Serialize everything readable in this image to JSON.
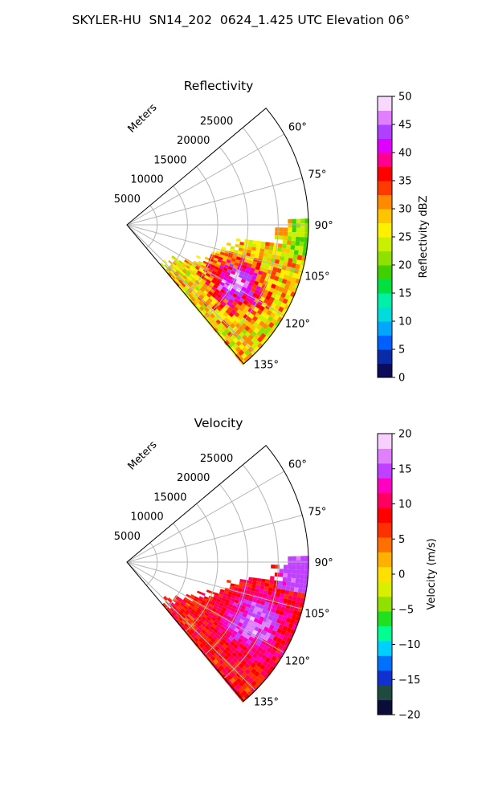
{
  "figure": {
    "title": "SKYLER-HU  SN14_202  0624_1.425 UTC Elevation 06°"
  },
  "colors": {
    "reflectivity_stops": [
      "#0c0c5a",
      "#0a2ba8",
      "#0060ff",
      "#00a6ff",
      "#00dcdc",
      "#00f0a8",
      "#00e040",
      "#40d000",
      "#90e000",
      "#c8f000",
      "#fff000",
      "#ffc400",
      "#ff8a00",
      "#ff3a00",
      "#ff0000",
      "#ff0090",
      "#e000ff",
      "#b040ff",
      "#e080ff",
      "#f8d8ff"
    ],
    "velocity_stops": [
      "#0c0c3a",
      "#1e4a40",
      "#1030d0",
      "#0070ff",
      "#00d0ff",
      "#00ff90",
      "#20e020",
      "#90e000",
      "#d8f000",
      "#ffe000",
      "#ffb000",
      "#ff7000",
      "#ff3000",
      "#ff0000",
      "#ff0060",
      "#ff00c0",
      "#c040ff",
      "#e080ff",
      "#f8d0ff"
    ]
  },
  "chart_data": [
    {
      "type": "heatmap",
      "title": "Reflectivity",
      "field": "Reflectivity dBZ",
      "range_axis_label": "Meters",
      "range_ticks": [
        "5000",
        "10000",
        "15000",
        "20000",
        "25000"
      ],
      "range_max": 30000,
      "azimuth_ticks": [
        "60°",
        "75°",
        "90°",
        "105°",
        "120°",
        "135°"
      ],
      "azimuth_range_deg": [
        50,
        140
      ],
      "grid": true,
      "colorbar": {
        "label": "Reflectivity dBZ",
        "range": [
          0,
          50
        ],
        "ticks": [
          "0",
          "5",
          "10",
          "15",
          "20",
          "25",
          "30",
          "35",
          "40",
          "45",
          "50"
        ]
      },
      "echo_summary": [
        {
          "azimuth_deg": [
            90,
            140
          ],
          "range_m": [
            6000,
            30000
          ],
          "typical_value": "20–35 dBZ",
          "peak_value": "45–50 dBZ"
        }
      ]
    },
    {
      "type": "heatmap",
      "title": "Velocity",
      "field": "Velocity (m/s)",
      "range_axis_label": "Meters",
      "range_ticks": [
        "5000",
        "10000",
        "15000",
        "20000",
        "25000"
      ],
      "range_max": 30000,
      "azimuth_ticks": [
        "60°",
        "75°",
        "90°",
        "105°",
        "120°",
        "135°"
      ],
      "azimuth_range_deg": [
        50,
        140
      ],
      "grid": true,
      "colorbar": {
        "label": "Velocity (m/s)",
        "range": [
          -20,
          20
        ],
        "ticks": [
          "−20",
          "−15",
          "−10",
          "−5",
          "0",
          "5",
          "10",
          "15",
          "20"
        ]
      },
      "echo_summary": [
        {
          "azimuth_deg": [
            90,
            140
          ],
          "range_m": [
            7000,
            30000
          ],
          "typical_value": "5–12 m/s",
          "peak_value": "15–18 m/s"
        }
      ]
    }
  ]
}
